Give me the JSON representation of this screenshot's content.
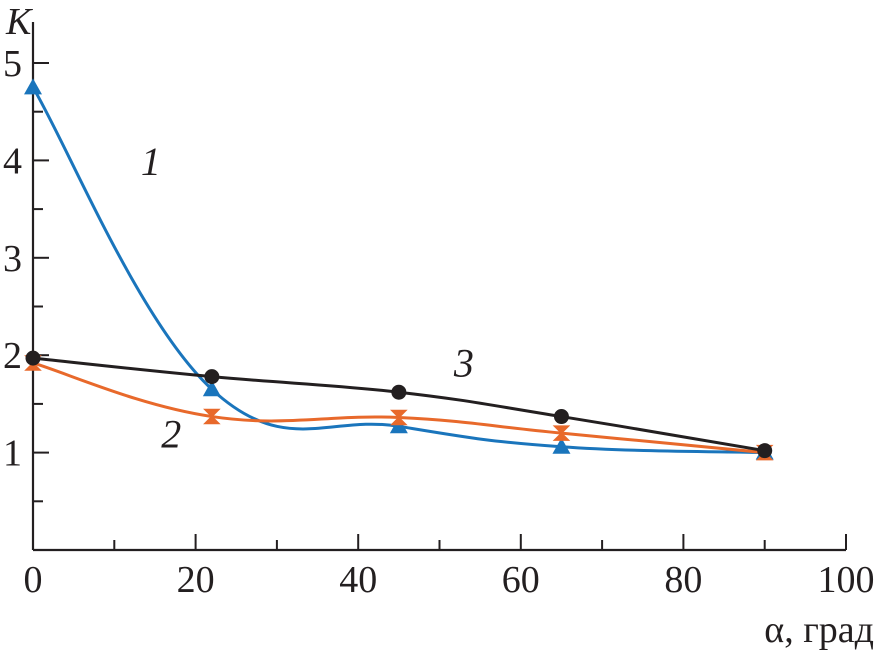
{
  "chart_data": {
    "type": "line",
    "xlabel": "α, град",
    "ylabel": "K",
    "xlim": [
      0,
      100
    ],
    "ylim": [
      0,
      5
    ],
    "x_ticks": [
      0,
      20,
      40,
      60,
      80,
      100
    ],
    "y_ticks": [
      1,
      2,
      3,
      4,
      5
    ],
    "grid": false,
    "series": [
      {
        "name": "1",
        "color": "#1a75bc",
        "marker": "triangle",
        "x": [
          0,
          22,
          45,
          65,
          90
        ],
        "y": [
          4.75,
          1.65,
          1.27,
          1.06,
          1.0
        ]
      },
      {
        "name": "2",
        "color": "#e8692b",
        "marker": "hourglass",
        "x": [
          0,
          22,
          45,
          65,
          90
        ],
        "y": [
          1.92,
          1.37,
          1.36,
          1.2,
          1.0
        ]
      },
      {
        "name": "3",
        "color": "#231f20",
        "marker": "circle",
        "x": [
          0,
          22,
          45,
          65,
          90
        ],
        "y": [
          1.97,
          1.78,
          1.62,
          1.37,
          1.02
        ]
      }
    ]
  }
}
